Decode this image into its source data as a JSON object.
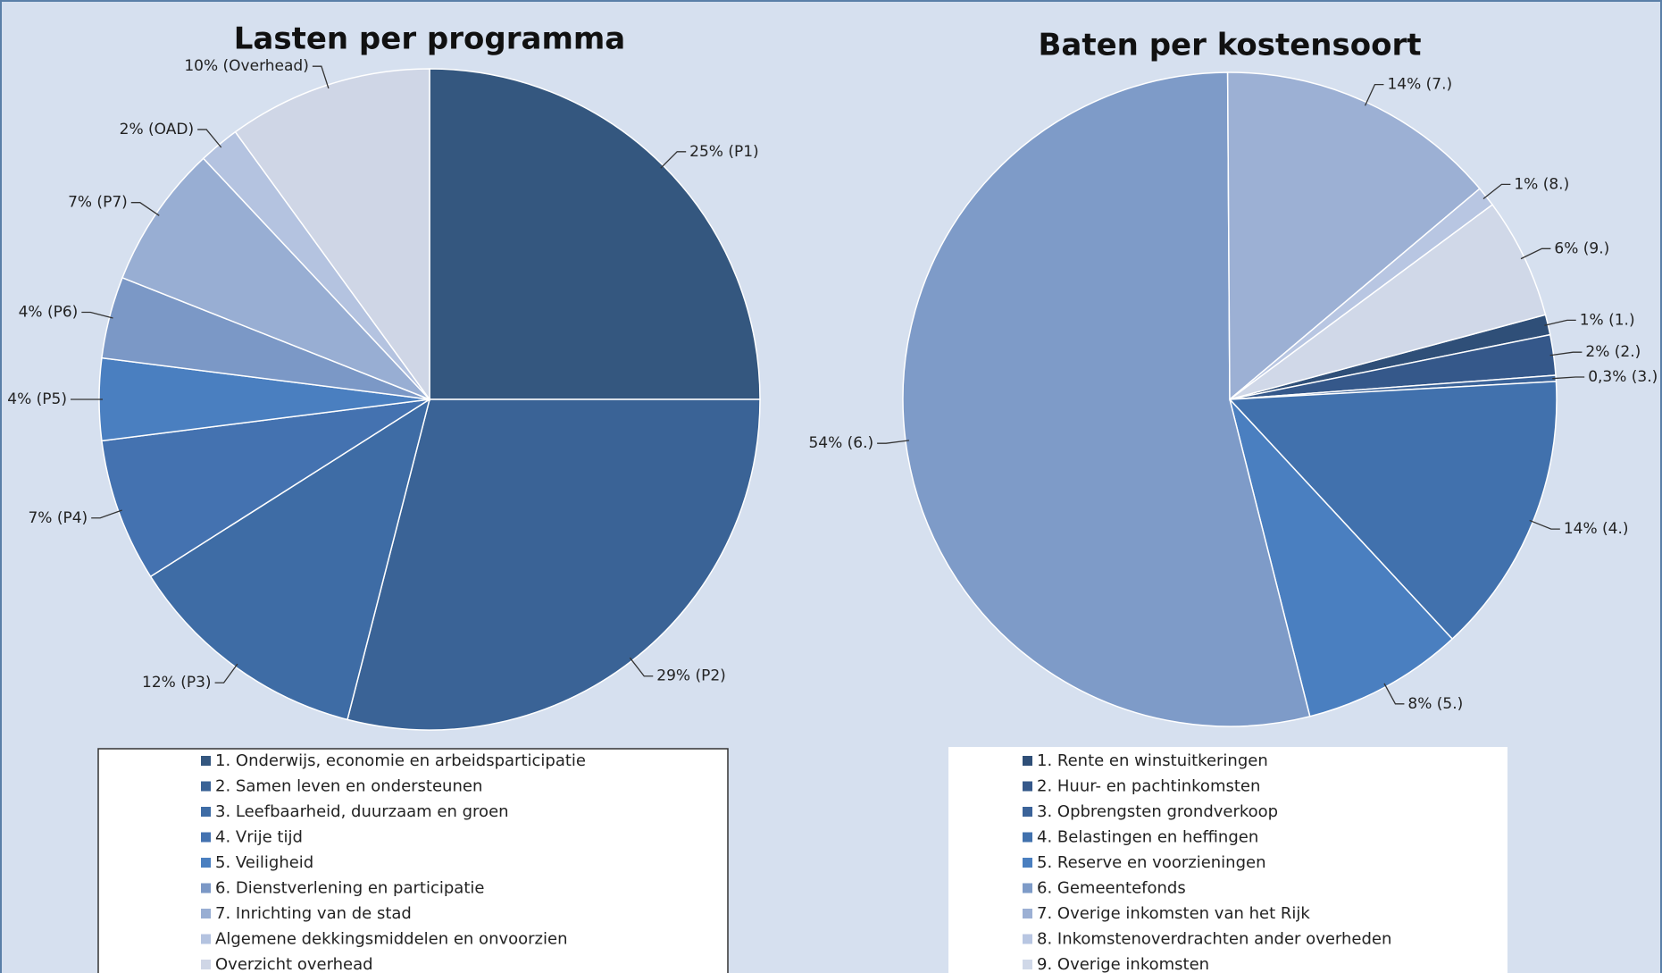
{
  "chart_data": [
    {
      "type": "pie",
      "title": "Lasten per programma",
      "start_angle": 0,
      "categories": [
        "1. Onderwijs, economie en arbeidsparticipatie",
        "2. Samen leven en ondersteunen",
        "3. Leefbaarheid, duurzaam en groen",
        "4. Vrije tijd",
        "5. Veiligheid",
        "6. Dienstverlening en participatie",
        "7. Inrichting van de stad",
        "Algemene dekkingsmiddelen en onvoorzien",
        "Overzicht overhead"
      ],
      "values": [
        25,
        29,
        12,
        7,
        4,
        4,
        7,
        2,
        10
      ],
      "value_labels": [
        "25% (P1)",
        "29% (P2)",
        "12% (P3)",
        "7% (P4)",
        "4% (P5)",
        "4% (P6)",
        "7% (P7)",
        "2% (OAD)",
        "10% (Overhead)"
      ],
      "colors": [
        "#34577f",
        "#3a6396",
        "#3e6ca5",
        "#4472b0",
        "#4a7fc0",
        "#7b98c6",
        "#98aed3",
        "#b4c3e0",
        "#cfd6e6"
      ]
    },
    {
      "type": "pie",
      "title": "Baten per kostensoort",
      "start_angle": 75,
      "categories": [
        "1. Rente en winstuitkeringen",
        "2. Huur- en pachtinkomsten",
        "3. Opbrengsten grondverkoop",
        "4. Belastingen en heffingen",
        "5. Reserve en voorzieningen",
        "6. Gemeentefonds",
        "7. Overige inkomsten van het Rijk",
        "8. Inkomstenoverdrachten ander overheden",
        "9. Overige inkomsten"
      ],
      "values": [
        1,
        2,
        0.3,
        14,
        8,
        54,
        14,
        1,
        6
      ],
      "value_labels": [
        "1% (1.)",
        "2% (2.)",
        "0,3% (3.)",
        "14% (4.)",
        "8% (5.)",
        "54% (6.)",
        "14% (7.)",
        "1% (8.)",
        "6% (9.)"
      ],
      "colors": [
        "#2f4f78",
        "#35588a",
        "#3b6399",
        "#4171ad",
        "#4a7fc0",
        "#7e9bc8",
        "#9cb0d4",
        "#b8c6e2",
        "#d0d8e8"
      ]
    }
  ]
}
